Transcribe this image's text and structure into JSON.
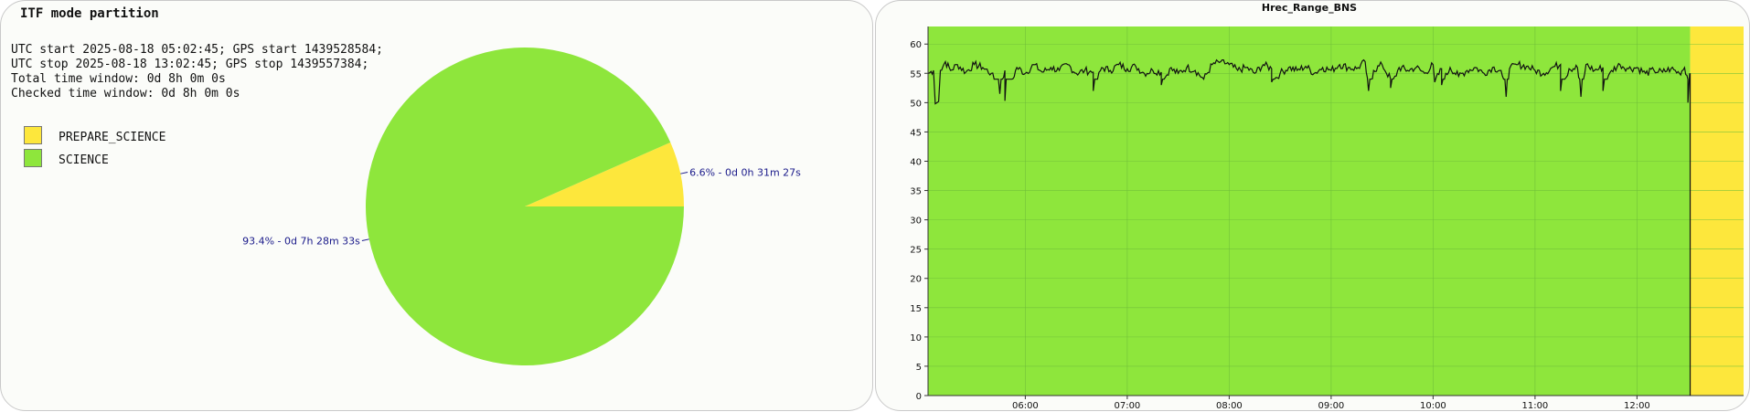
{
  "pie_panel": {
    "title": "ITF mode partition",
    "info": [
      "UTC start 2025-08-18 05:02:45; GPS start 1439528584;",
      "UTC stop 2025-08-18 13:02:45; GPS stop 1439557384;",
      "Total time window: 0d 8h 0m 0s",
      "Checked time window: 0d 8h 0m 0s"
    ],
    "legend": [
      {
        "label": "PREPARE_SCIENCE",
        "color": "#fde73c"
      },
      {
        "label": "SCIENCE",
        "color": "#8ee63c"
      }
    ]
  },
  "line_panel": {
    "title": "Hrec_Range_BNS"
  },
  "chart_data": [
    {
      "type": "pie",
      "slices": [
        {
          "name": "PREPARE_SCIENCE",
          "value": 6.6,
          "label": "6.6% - 0d 0h 31m 27s",
          "color": "#fde73c"
        },
        {
          "name": "SCIENCE",
          "value": 93.4,
          "label": "93.4% - 0d 7h 28m 33s",
          "color": "#8ee63c"
        }
      ]
    },
    {
      "type": "line",
      "title": "Hrec_Range_BNS",
      "xlabel": "",
      "ylabel": "",
      "x_range": [
        "2025-08-18 05:02:45",
        "2025-08-18 13:02:45"
      ],
      "ylim": [
        0,
        63
      ],
      "yticks": [
        0,
        5,
        10,
        15,
        20,
        25,
        30,
        35,
        40,
        45,
        50,
        55,
        60
      ],
      "xticks": [
        "06:00",
        "07:00",
        "08:00",
        "09:00",
        "10:00",
        "11:00",
        "12:00"
      ],
      "grid": true,
      "background_bands": [
        {
          "mode": "SCIENCE",
          "start": "05:02:45",
          "end": "12:31:18",
          "color": "#8ee63c"
        },
        {
          "mode": "PREPARE_SCIENCE",
          "start": "12:31:18",
          "end": "13:02:45",
          "color": "#fde73c"
        }
      ],
      "series": [
        {
          "color": "#111111",
          "points": [
            [
              "05:03",
              55.0
            ],
            [
              "05:06",
              55.5
            ],
            [
              "05:08",
              50.0
            ],
            [
              "05:10",
              55.5
            ],
            [
              "05:13",
              57.0
            ],
            [
              "05:16",
              55.5
            ],
            [
              "05:20",
              56.5
            ],
            [
              "05:25",
              55.2
            ],
            [
              "05:30",
              56.5
            ],
            [
              "05:35",
              56.0
            ],
            [
              "05:40",
              55.0
            ],
            [
              "05:45",
              51.5
            ],
            [
              "05:48",
              55.5
            ],
            [
              "05:55",
              56.0
            ],
            [
              "06:00",
              55.0
            ],
            [
              "06:05",
              56.5
            ],
            [
              "06:10",
              55.2
            ],
            [
              "06:15",
              56.0
            ],
            [
              "06:20",
              55.5
            ],
            [
              "06:25",
              56.5
            ],
            [
              "06:30",
              55.0
            ],
            [
              "06:35",
              55.5
            ],
            [
              "06:40",
              55.2
            ],
            [
              "06:45",
              56.0
            ],
            [
              "06:50",
              55.5
            ],
            [
              "06:55",
              56.5
            ],
            [
              "07:00",
              55.8
            ],
            [
              "07:05",
              56.2
            ],
            [
              "07:10",
              55.0
            ],
            [
              "07:15",
              55.5
            ],
            [
              "07:20",
              55.2
            ],
            [
              "07:25",
              55.8
            ],
            [
              "07:30",
              55.0
            ],
            [
              "07:35",
              56.0
            ],
            [
              "07:40",
              55.5
            ],
            [
              "07:45",
              54.0
            ],
            [
              "07:50",
              56.5
            ],
            [
              "07:55",
              57.0
            ],
            [
              "08:00",
              56.5
            ],
            [
              "08:05",
              55.5
            ],
            [
              "08:10",
              56.0
            ],
            [
              "08:15",
              55.0
            ],
            [
              "08:20",
              56.5
            ],
            [
              "08:25",
              55.8
            ],
            [
              "08:30",
              55.0
            ],
            [
              "08:35",
              56.0
            ],
            [
              "08:40",
              55.5
            ],
            [
              "08:45",
              56.2
            ],
            [
              "08:50",
              55.0
            ],
            [
              "08:55",
              56.0
            ],
            [
              "09:00",
              55.5
            ],
            [
              "09:05",
              56.5
            ],
            [
              "09:10",
              56.0
            ],
            [
              "09:15",
              55.8
            ],
            [
              "09:20",
              57.0
            ],
            [
              "09:25",
              55.5
            ],
            [
              "09:30",
              56.5
            ],
            [
              "09:35",
              54.0
            ],
            [
              "09:40",
              56.0
            ],
            [
              "09:45",
              55.5
            ],
            [
              "09:50",
              56.0
            ],
            [
              "09:55",
              55.0
            ],
            [
              "10:00",
              56.5
            ],
            [
              "10:05",
              55.8
            ],
            [
              "10:10",
              56.0
            ],
            [
              "10:15",
              54.5
            ],
            [
              "10:20",
              55.5
            ],
            [
              "10:25",
              56.0
            ],
            [
              "10:30",
              55.0
            ],
            [
              "10:35",
              56.0
            ],
            [
              "10:40",
              55.5
            ],
            [
              "10:45",
              55.8
            ],
            [
              "10:50",
              56.5
            ],
            [
              "10:55",
              56.2
            ],
            [
              "11:00",
              55.5
            ],
            [
              "11:05",
              55.0
            ],
            [
              "11:10",
              56.0
            ],
            [
              "11:15",
              56.5
            ],
            [
              "11:20",
              55.8
            ],
            [
              "11:25",
              56.0
            ],
            [
              "11:30",
              56.5
            ],
            [
              "11:35",
              55.5
            ],
            [
              "11:40",
              56.0
            ],
            [
              "11:45",
              55.5
            ],
            [
              "11:50",
              56.5
            ],
            [
              "11:55",
              55.8
            ],
            [
              "12:00",
              56.0
            ],
            [
              "12:05",
              55.0
            ],
            [
              "12:10",
              55.5
            ],
            [
              "12:15",
              55.2
            ],
            [
              "12:20",
              55.8
            ],
            [
              "12:25",
              55.0
            ],
            [
              "12:28",
              56.0
            ],
            [
              "12:30",
              54.0
            ],
            [
              "12:31",
              55.0
            ]
          ],
          "dips": [
            [
              "05:07",
              49.8
            ],
            [
              "05:09",
              50.2
            ],
            [
              "05:48",
              50.3
            ],
            [
              "06:40",
              52.0
            ],
            [
              "07:20",
              53.0
            ],
            [
              "08:25",
              53.5
            ],
            [
              "09:22",
              52.0
            ],
            [
              "09:35",
              52.5
            ],
            [
              "10:01",
              53.5
            ],
            [
              "10:05",
              53.0
            ],
            [
              "10:43",
              51.0
            ],
            [
              "11:15",
              52.0
            ],
            [
              "11:27",
              51.0
            ],
            [
              "11:40",
              52.0
            ],
            [
              "12:30",
              50.0
            ]
          ]
        }
      ]
    }
  ]
}
